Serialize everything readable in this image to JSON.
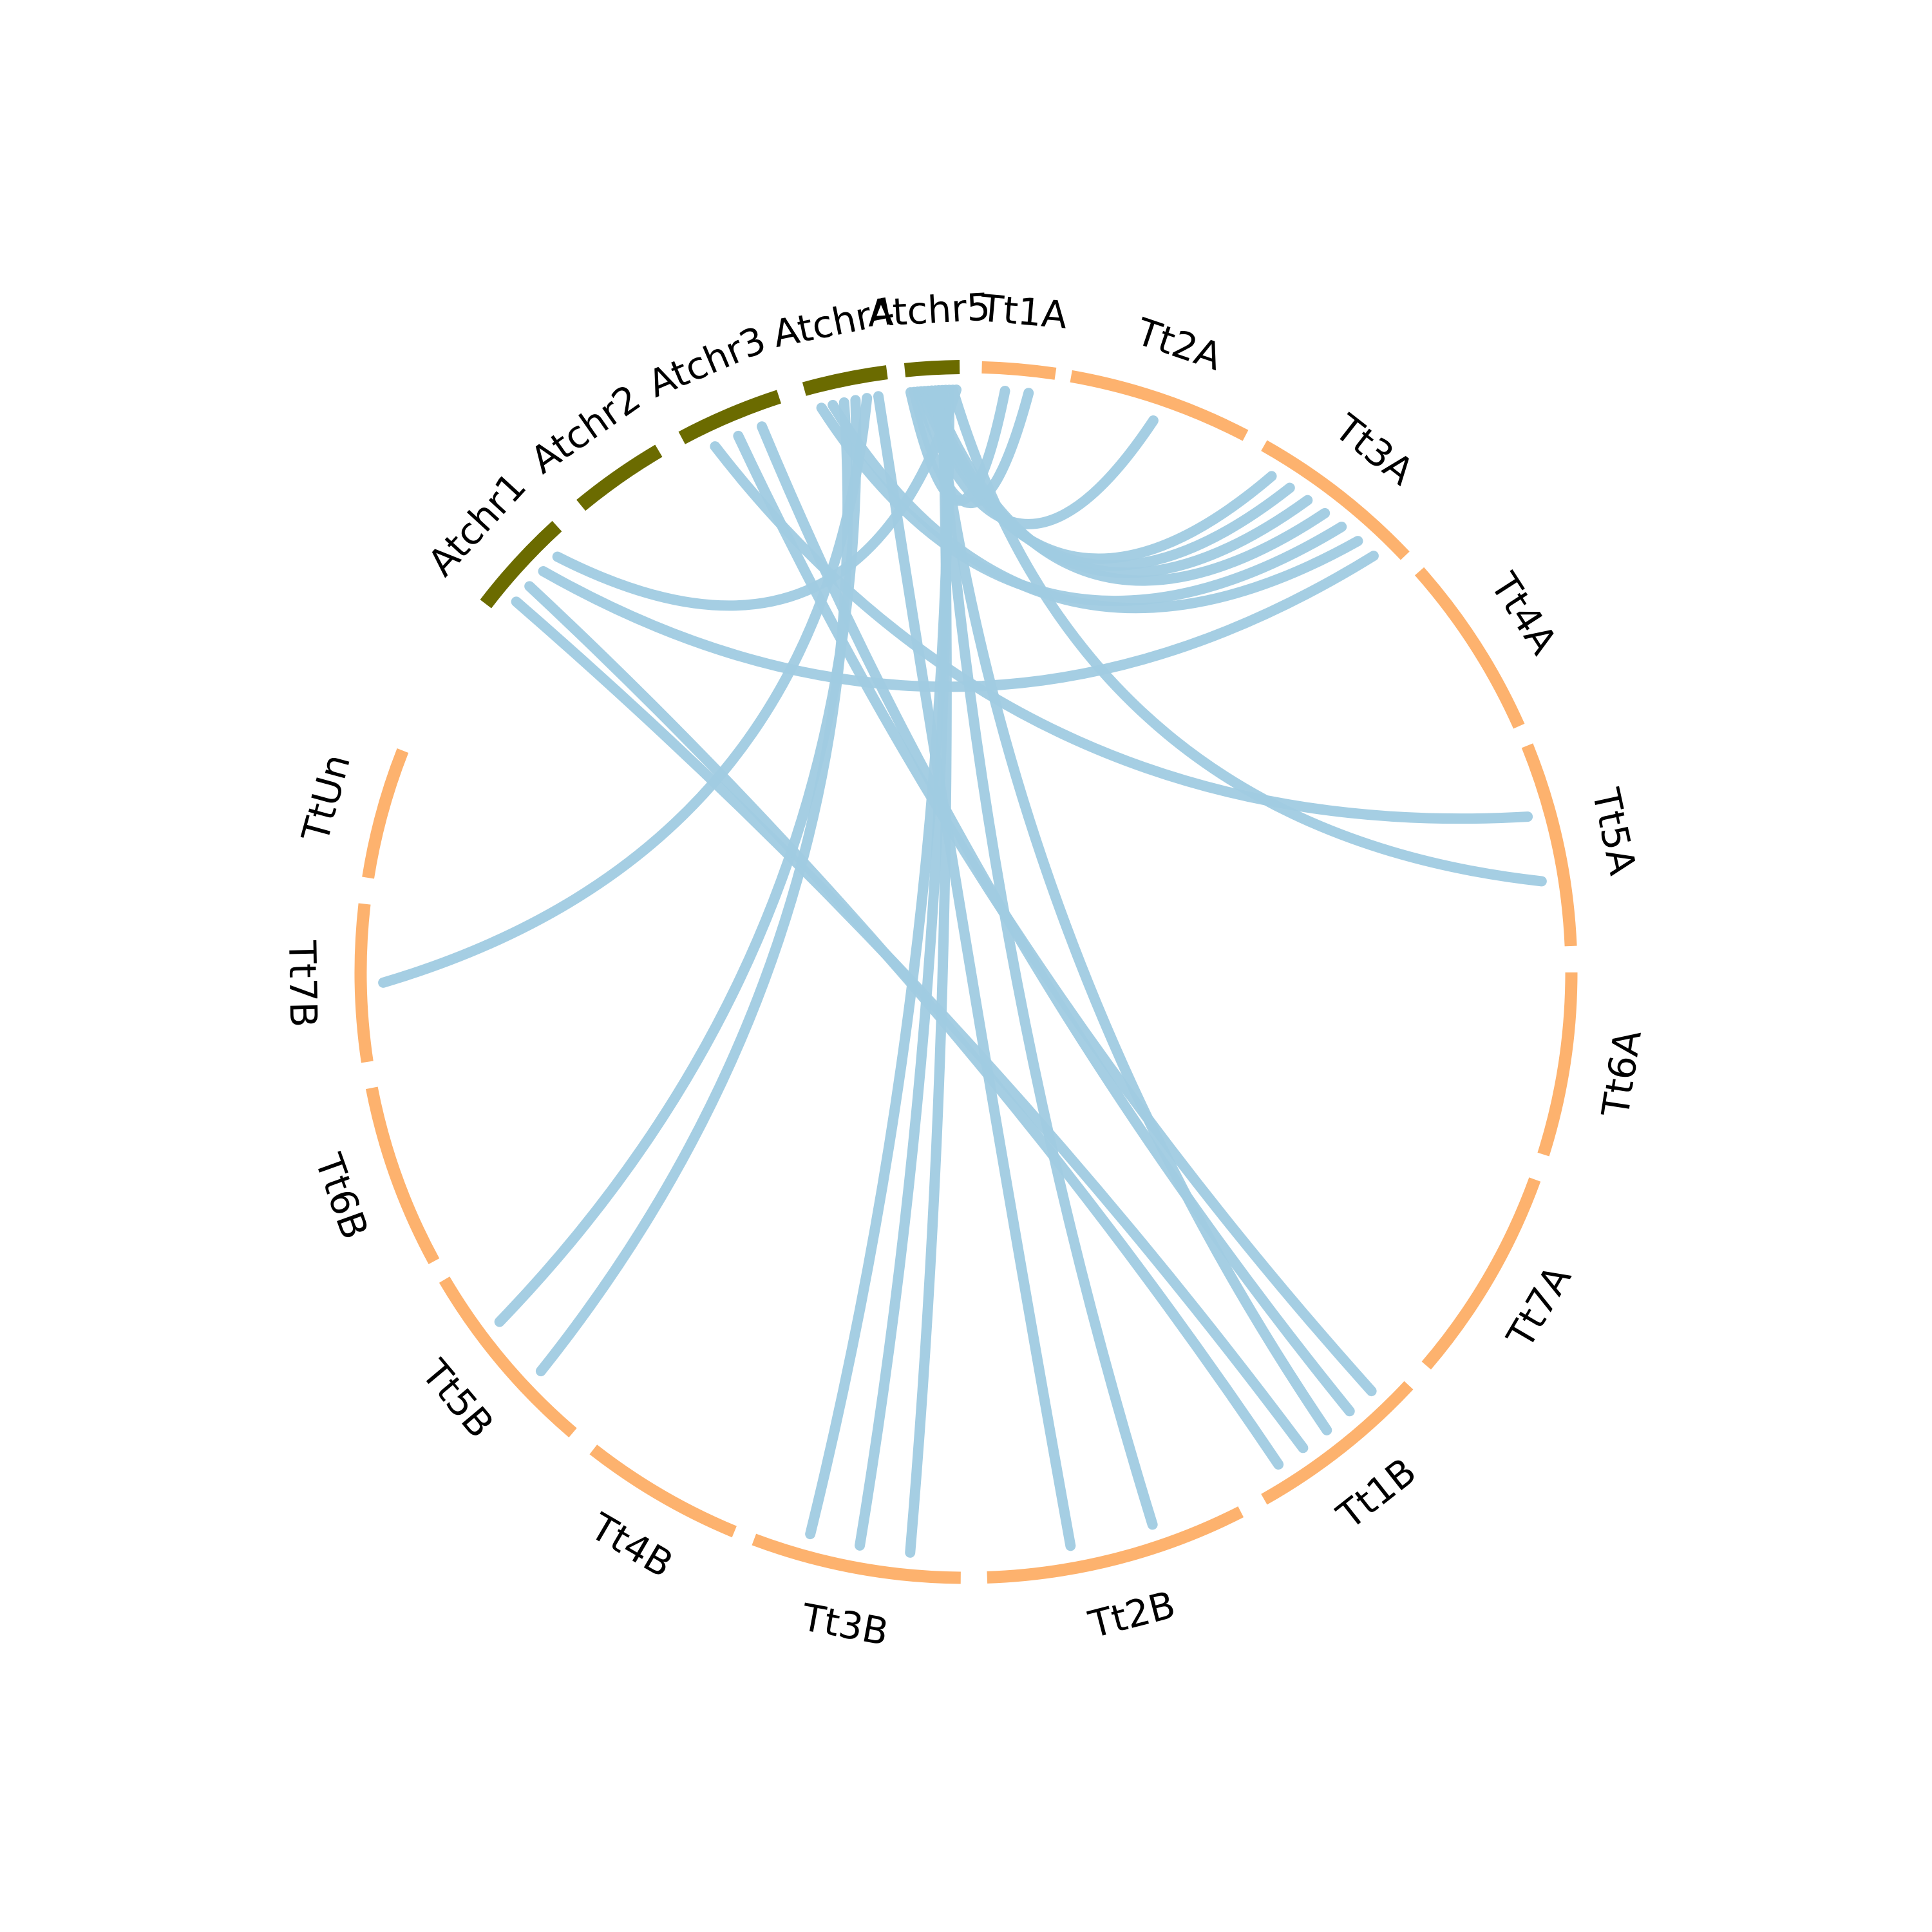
{
  "diagram": {
    "type": "circos-synteny",
    "colors": {
      "arabidopsis": "#6b6b00",
      "wheat": "#fdb26e",
      "link": "#a0cbe2"
    },
    "segments": [
      {
        "id": "Atchr1",
        "label": "Atchr1",
        "group": "arabidopsis"
      },
      {
        "id": "Atchr2",
        "label": "Atchr2",
        "group": "arabidopsis"
      },
      {
        "id": "Atchr3",
        "label": "Atchr3",
        "group": "arabidopsis"
      },
      {
        "id": "Atchr4",
        "label": "Atchr4",
        "group": "arabidopsis"
      },
      {
        "id": "Atchr5",
        "label": "Atchr5",
        "group": "arabidopsis"
      },
      {
        "id": "Tt1A",
        "label": "Tt1A",
        "group": "wheat"
      },
      {
        "id": "Tt2A",
        "label": "Tt2A",
        "group": "wheat"
      },
      {
        "id": "Tt3A",
        "label": "Tt3A",
        "group": "wheat"
      },
      {
        "id": "Tt4A",
        "label": "Tt4A",
        "group": "wheat"
      },
      {
        "id": "Tt5A",
        "label": "Tt5A",
        "group": "wheat"
      },
      {
        "id": "Tt6A",
        "label": "Tt6A",
        "group": "wheat"
      },
      {
        "id": "Tt7A",
        "label": "Tt7A",
        "group": "wheat"
      },
      {
        "id": "Tt1B",
        "label": "Tt1B",
        "group": "wheat"
      },
      {
        "id": "Tt2B",
        "label": "Tt2B",
        "group": "wheat"
      },
      {
        "id": "Tt3B",
        "label": "Tt3B",
        "group": "wheat"
      },
      {
        "id": "Tt4B",
        "label": "Tt4B",
        "group": "wheat"
      },
      {
        "id": "Tt5B",
        "label": "Tt5B",
        "group": "wheat"
      },
      {
        "id": "Tt6B",
        "label": "Tt6B",
        "group": "wheat"
      },
      {
        "id": "Tt7B",
        "label": "Tt7B",
        "group": "wheat"
      },
      {
        "id": "TtUn",
        "label": "TtUn",
        "group": "wheat"
      }
    ],
    "links": [
      {
        "from": "Atchr5",
        "to": "Tt1A"
      },
      {
        "from": "Atchr5",
        "to": "Tt1A"
      },
      {
        "from": "Atchr5",
        "to": "Tt2A"
      },
      {
        "from": "Atchr5",
        "to": "Tt3A"
      },
      {
        "from": "Atchr5",
        "to": "Tt3A"
      },
      {
        "from": "Atchr5",
        "to": "Tt3A"
      },
      {
        "from": "Atchr5",
        "to": "Tt3A"
      },
      {
        "from": "Atchr4",
        "to": "Tt3A"
      },
      {
        "from": "Atchr4",
        "to": "Tt3A"
      },
      {
        "from": "Atchr3",
        "to": "Tt5A"
      },
      {
        "from": "Atchr3",
        "to": "Tt1B"
      },
      {
        "from": "Atchr3",
        "to": "Tt1B"
      },
      {
        "from": "Atchr5",
        "to": "Tt1B"
      },
      {
        "from": "Atchr5",
        "to": "Tt2B"
      },
      {
        "from": "Atchr5",
        "to": "Tt3B"
      },
      {
        "from": "Atchr5",
        "to": "Tt3B"
      },
      {
        "from": "Atchr5",
        "to": "Tt3B"
      },
      {
        "from": "Atchr4",
        "to": "Tt5B"
      },
      {
        "from": "Atchr4",
        "to": "Tt5B"
      },
      {
        "from": "Atchr4",
        "to": "Tt7B"
      },
      {
        "from": "Atchr1",
        "to": "Tt1B"
      },
      {
        "from": "Atchr1",
        "to": "Tt1B"
      },
      {
        "from": "Atchr1",
        "to": "Tt3A"
      },
      {
        "from": "Atchr4",
        "to": "Tt2B"
      },
      {
        "from": "Atchr5",
        "to": "Tt5A"
      },
      {
        "from": "Atchr5",
        "to": "Atchr1"
      }
    ]
  }
}
